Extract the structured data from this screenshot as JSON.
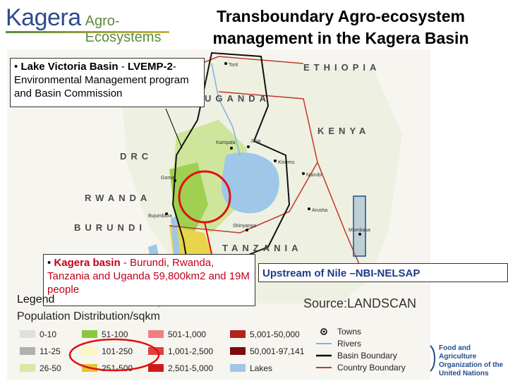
{
  "logo": {
    "main": "Kagera",
    "sub": "Agro-Ecosystems"
  },
  "title": {
    "line1": "Transboundary Agro-ecosystem",
    "line2": "management in the Kagera Basin"
  },
  "callouts": {
    "lake_victoria": {
      "bullet": "•",
      "name": "Lake Victoria Basin",
      "sep": " - ",
      "program": "LVEMP-2",
      "rest": "- Environmental Management program and Basin Commission"
    },
    "kagera": {
      "bullet": "•",
      "name": "Kagera basin",
      "rest": " - Burundi, Rwanda, Tanzania and Uganda 59,800km2 and 19M people"
    },
    "upstream": "Upstream of Nile –NBI-NELSAP"
  },
  "map_labels": {
    "ethiopia": "ETHIOPIA",
    "uganda": "UGANDA",
    "kenya": "KENYA",
    "drc": "DRC",
    "rwanda": "RWANDA",
    "burundi": "BURUNDI",
    "tanzania": "TANZANIA"
  },
  "cities": [
    "Torit",
    "Kampala",
    "Jinja",
    "Goma",
    "Nairobi",
    "Arusha",
    "Mombasa",
    "Bujumbura",
    "Shinyanga",
    "Kisumu"
  ],
  "legend": {
    "title": "Legend",
    "subtitle": "Population Distribution/sqkm",
    "source": "Source:LANDSCAN",
    "population": [
      {
        "label": "0-10",
        "color": "#e0e0e0"
      },
      {
        "label": "51-100",
        "color": "#8cc63f"
      },
      {
        "label": "501-1,000",
        "color": "#f08080"
      },
      {
        "label": "5,001-50,000",
        "color": "#b22222"
      },
      {
        "label": "11-25",
        "color": "#b0b0b0"
      },
      {
        "label": "101-250",
        "color": "#fbf6c0"
      },
      {
        "label": "1,001-2,500",
        "color": "#e04040"
      },
      {
        "label": "50,001-97,141",
        "color": "#7a0c0c"
      },
      {
        "label": "26-50",
        "color": "#d9e8a8"
      },
      {
        "label": "251-500",
        "color": "#e5c43a"
      },
      {
        "label": "2,501-5,000",
        "color": "#d01a1a"
      },
      {
        "label": "Lakes",
        "color": "#9ec7e8"
      }
    ],
    "features": [
      {
        "label": "Towns",
        "icon": "town-marker-icon"
      },
      {
        "label": "Rivers",
        "icon": "river-line-icon",
        "color": "#7fb2de"
      },
      {
        "label": "Basin Boundary",
        "icon": "basin-boundary-icon",
        "color": "#000000"
      },
      {
        "label": "Country Boundary",
        "icon": "country-boundary-icon",
        "color": "#c0392b"
      }
    ]
  },
  "fao": {
    "line1": "Food and Agriculture",
    "line2": "Organization of the",
    "line3": "United Nations"
  }
}
